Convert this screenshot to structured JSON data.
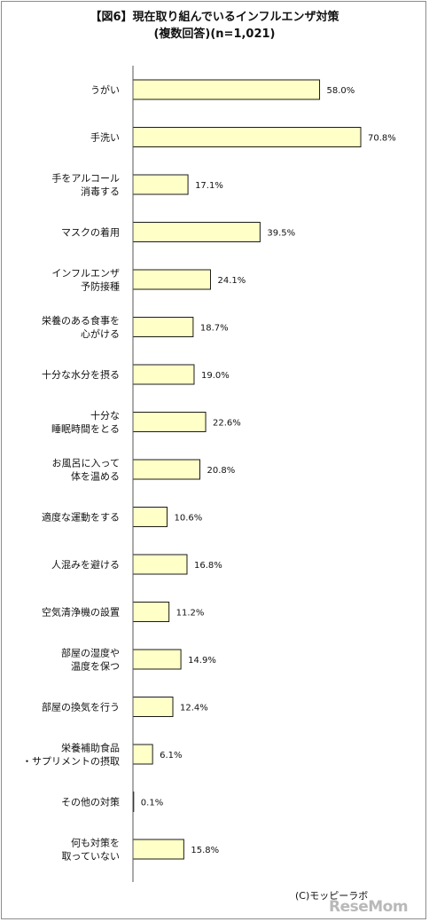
{
  "chart_data": {
    "type": "bar",
    "orientation": "horizontal",
    "title": "【図6】現在取り組んでいるインフルエンザ対策",
    "subtitle": "(複数回答)(n=1,021)",
    "unit": "%",
    "categories": [
      [
        "うがい"
      ],
      [
        "手洗い"
      ],
      [
        "手をアルコール",
        "消毒する"
      ],
      [
        "マスクの着用"
      ],
      [
        "インフルエンザ",
        "予防接種"
      ],
      [
        "栄養のある食事を",
        "心がける"
      ],
      [
        "十分な水分を摂る"
      ],
      [
        "十分な",
        "睡眠時間をとる"
      ],
      [
        "お風呂に入って",
        "体を温める"
      ],
      [
        "適度な運動をする"
      ],
      [
        "人混みを避ける"
      ],
      [
        "空気清浄機の設置"
      ],
      [
        "部屋の湿度や",
        "温度を保つ"
      ],
      [
        "部屋の換気を行う"
      ],
      [
        "栄養補助食品",
        "・サプリメントの摂取"
      ],
      [
        "その他の対策"
      ],
      [
        "何も対策を",
        "取っていない"
      ]
    ],
    "values": [
      58.0,
      70.8,
      17.1,
      39.5,
      24.1,
      18.7,
      19.0,
      22.6,
      20.8,
      10.6,
      16.8,
      11.2,
      14.9,
      12.4,
      6.1,
      0.1,
      15.8
    ],
    "value_labels": [
      "58.0%",
      "70.8%",
      "17.1%",
      "39.5%",
      "24.1%",
      "18.7%",
      "19.0%",
      "22.6%",
      "20.8%",
      "10.6%",
      "16.8%",
      "11.2%",
      "14.9%",
      "12.4%",
      "6.1%",
      "0.1%",
      "15.8%"
    ],
    "xlim": [
      0,
      100
    ],
    "grid": false,
    "legend": "none"
  },
  "colors": {
    "bar_fill": "#ffffc8",
    "bar_stroke": "#1a1a1a",
    "axis": "#555555",
    "logo": "#b9b9b9"
  },
  "footer": {
    "credit": "(C)モッピーラボ",
    "logo_text": "ReseMom"
  }
}
